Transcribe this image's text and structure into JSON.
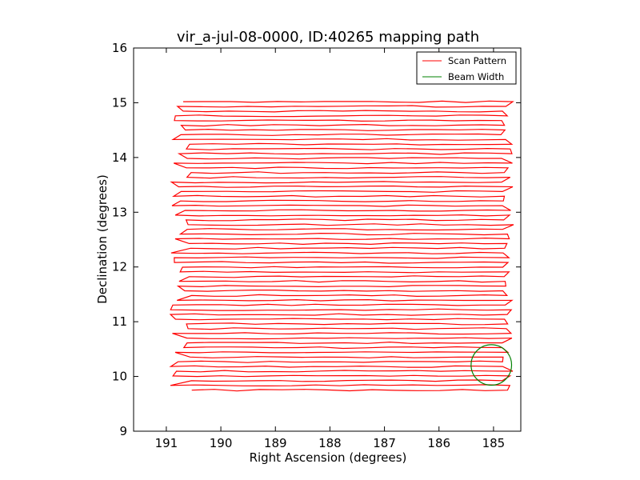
{
  "chart_data": {
    "type": "line",
    "title": "vir_a-jul-08-0000, ID:40265 mapping path",
    "xlabel": "Right Ascension (degrees)",
    "ylabel": "Declination (degrees)",
    "xlim": [
      191.6,
      184.5
    ],
    "ylim": [
      9,
      16
    ],
    "x_ticks": [
      "191",
      "190",
      "189",
      "188",
      "187",
      "186",
      "185"
    ],
    "x_tick_values": [
      191,
      190,
      189,
      188,
      187,
      186,
      185
    ],
    "y_ticks": [
      "9",
      "10",
      "11",
      "12",
      "13",
      "14",
      "15",
      "16"
    ],
    "y_tick_values": [
      9,
      10,
      11,
      12,
      13,
      14,
      15,
      16
    ],
    "grid": false,
    "legend_placement": "top-right",
    "scan": {
      "dec_start": 9.75,
      "dec_end": 15.02,
      "legs": 62,
      "ra_west_base": 190.65,
      "ra_west_amp": 0.2,
      "ra_east_base": 184.75,
      "ra_east_amp": 0.12
    },
    "series": [
      {
        "name": "Scan Pattern",
        "color": "#ff0000",
        "kind": "line"
      },
      {
        "name": "Beam Width",
        "color": "#008000",
        "kind": "circle",
        "center": [
          185.04,
          10.21
        ],
        "radius_dec": 0.37
      }
    ]
  }
}
